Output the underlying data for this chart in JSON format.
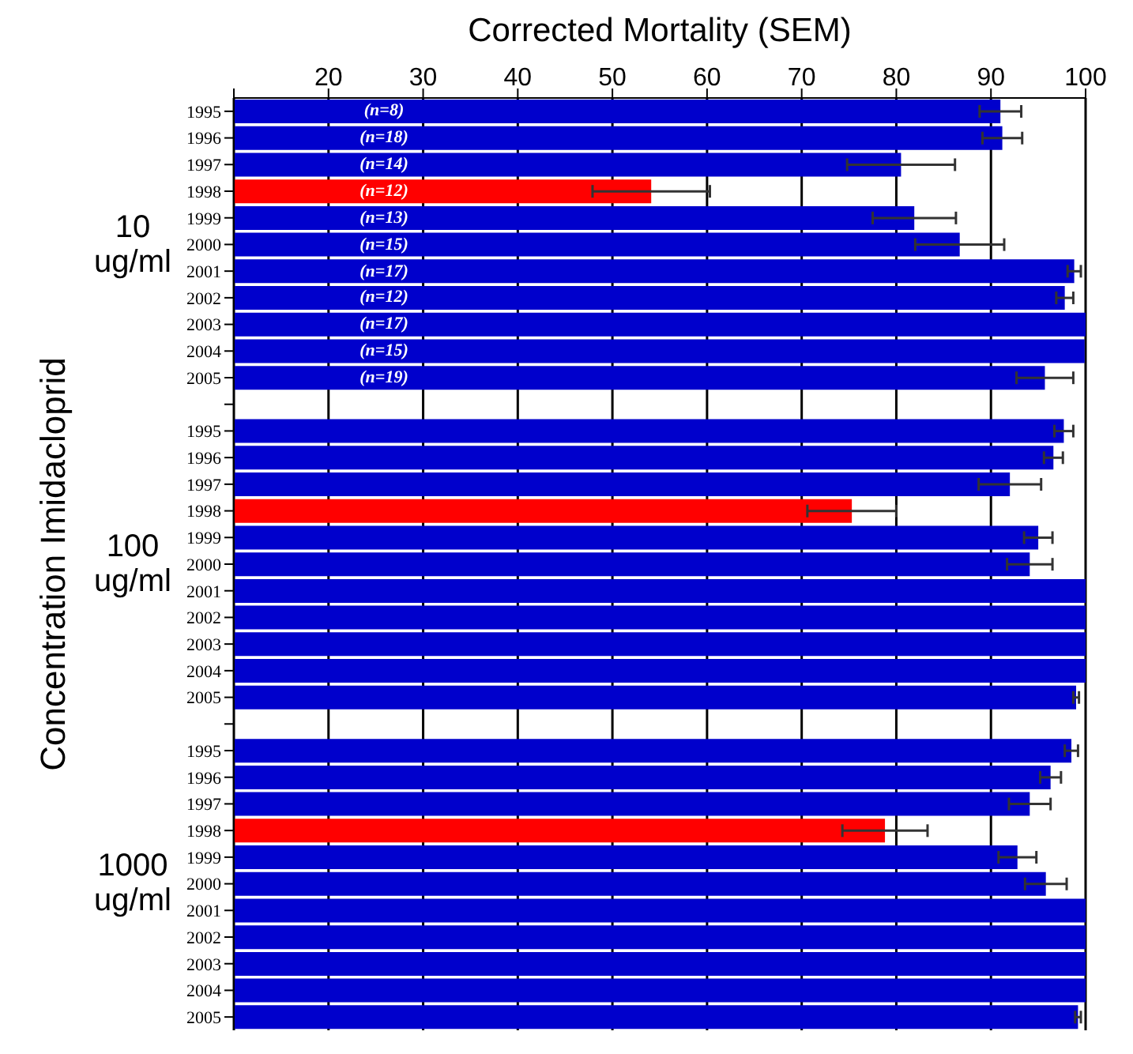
{
  "chart_data": {
    "type": "bar",
    "orientation": "horizontal",
    "xlabel": "Corrected Mortality (SEM)",
    "ylabel": "Concentration Imidacloprid",
    "categories": [
      "1995",
      "1996",
      "1997",
      "1998",
      "1999",
      "2000",
      "2001",
      "2002",
      "2003",
      "2004",
      "2005",
      null,
      "1995",
      "1996",
      "1997",
      "1998",
      "1999",
      "2000",
      "2001",
      "2002",
      "2003",
      "2004",
      "2005",
      null,
      "1995",
      "1996",
      "1997",
      "1998",
      "1999",
      "2000",
      "2001",
      "2002",
      "2003",
      "2004",
      "2005"
    ],
    "values": [
      91.0,
      91.2,
      80.5,
      54.1,
      81.9,
      86.7,
      98.8,
      97.8,
      100,
      99.9,
      95.7,
      null,
      97.7,
      96.6,
      92.0,
      75.3,
      95.0,
      94.1,
      100,
      100,
      100,
      100,
      99.0,
      null,
      98.5,
      96.3,
      94.1,
      78.8,
      92.8,
      95.8,
      100,
      100,
      100,
      100,
      99.2
    ],
    "errors": [
      2.2,
      2.1,
      5.7,
      6.2,
      4.4,
      4.7,
      0.7,
      0.9,
      null,
      null,
      3.0,
      null,
      1.0,
      1.0,
      3.3,
      4.7,
      1.5,
      2.4,
      null,
      null,
      null,
      null,
      0.3,
      null,
      0.7,
      1.1,
      2.2,
      4.5,
      2.0,
      2.2,
      null,
      null,
      null,
      null,
      0.3
    ],
    "colors": [
      "#0000cc",
      "#0000cc",
      "#0000cc",
      "#ff0000",
      "#0000cc",
      "#0000cc",
      "#0000cc",
      "#0000cc",
      "#0000cc",
      "#0000cc",
      "#0000cc",
      "#ffffff",
      "#0000cc",
      "#0000cc",
      "#0000cc",
      "#ff0000",
      "#0000cc",
      "#0000cc",
      "#0000cc",
      "#0000cc",
      "#0000cc",
      "#0000cc",
      "#0000cc",
      "#ffffff",
      "#0000cc",
      "#0000cc",
      "#0000cc",
      "#ff0000",
      "#0000cc",
      "#0000cc",
      "#0000cc",
      "#0000cc",
      "#0000cc",
      "#0000cc",
      "#0000cc"
    ],
    "xlim": [
      10,
      100
    ],
    "xticks": [
      {
        "value": 10,
        "label": null
      },
      20,
      30,
      40,
      50,
      60,
      70,
      80,
      90,
      100
    ],
    "grid": "x",
    "annotations": [
      "10 ug/ml",
      "100 ug/ml",
      "1000 ug/ml",
      "(n=8)",
      "(n=18)",
      "(n=14)",
      "(n=12)",
      "(n=13)",
      "(n=15)",
      "(n=17)",
      "(n=12)",
      "(n=17)",
      "(n=15)",
      "(n=19)"
    ]
  }
}
